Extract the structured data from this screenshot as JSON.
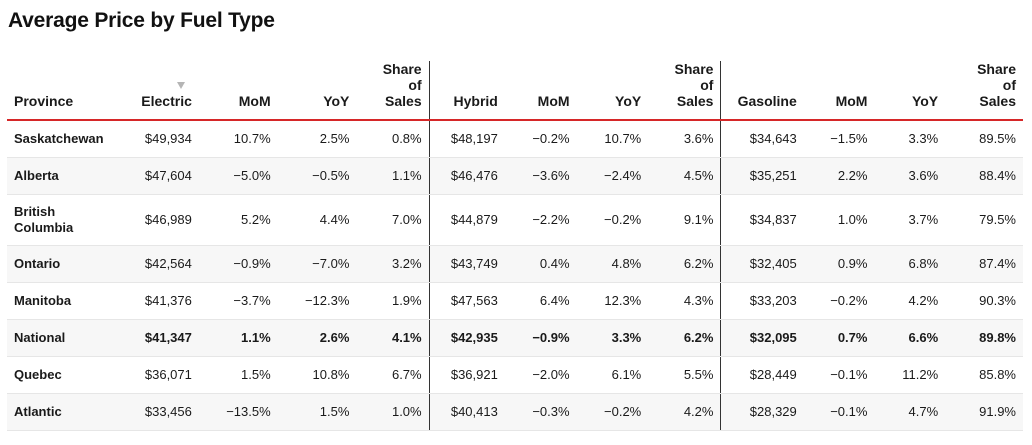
{
  "title": "Average Price by Fuel Type",
  "columns": [
    "Province",
    "Electric",
    "MoM",
    "YoY",
    "Share of Sales",
    "Hybrid",
    "MoM",
    "YoY",
    "Share of Sales",
    "Gasoline",
    "MoM",
    "YoY",
    "Share of Sales"
  ],
  "share_lines": [
    "Share",
    "of",
    "Sales"
  ],
  "sort_icon": "sort-down-icon",
  "accent_color": "#d62728",
  "rows": [
    {
      "province": "Saskatchewan",
      "cells": [
        "$49,934",
        "10.7%",
        "2.5%",
        "0.8%",
        "$48,197",
        "−0.2%",
        "10.7%",
        "3.6%",
        "$34,643",
        "−1.5%",
        "3.3%",
        "89.5%"
      ]
    },
    {
      "province": "Alberta",
      "cells": [
        "$47,604",
        "−5.0%",
        "−0.5%",
        "1.1%",
        "$46,476",
        "−3.6%",
        "−2.4%",
        "4.5%",
        "$35,251",
        "2.2%",
        "3.6%",
        "88.4%"
      ]
    },
    {
      "province_lines": [
        "British",
        "Columbia"
      ],
      "province": "British Columbia",
      "cells": [
        "$46,989",
        "5.2%",
        "4.4%",
        "7.0%",
        "$44,879",
        "−2.2%",
        "−0.2%",
        "9.1%",
        "$34,837",
        "1.0%",
        "3.7%",
        "79.5%"
      ]
    },
    {
      "province": "Ontario",
      "cells": [
        "$42,564",
        "−0.9%",
        "−7.0%",
        "3.2%",
        "$43,749",
        "0.4%",
        "4.8%",
        "6.2%",
        "$32,405",
        "0.9%",
        "6.8%",
        "87.4%"
      ]
    },
    {
      "province": "Manitoba",
      "cells": [
        "$41,376",
        "−3.7%",
        "−12.3%",
        "1.9%",
        "$47,563",
        "6.4%",
        "12.3%",
        "4.3%",
        "$33,203",
        "−0.2%",
        "4.2%",
        "90.3%"
      ]
    },
    {
      "province": "National",
      "cells": [
        "$41,347",
        "1.1%",
        "2.6%",
        "4.1%",
        "$42,935",
        "−0.9%",
        "3.3%",
        "6.2%",
        "$32,095",
        "0.7%",
        "6.6%",
        "89.8%"
      ]
    },
    {
      "province": "Quebec",
      "cells": [
        "$36,071",
        "1.5%",
        "10.8%",
        "6.7%",
        "$36,921",
        "−2.0%",
        "6.1%",
        "5.5%",
        "$28,449",
        "−0.1%",
        "11.2%",
        "85.8%"
      ]
    },
    {
      "province": "Atlantic",
      "cells": [
        "$33,456",
        "−13.5%",
        "1.5%",
        "1.0%",
        "$40,413",
        "−0.3%",
        "−0.2%",
        "4.2%",
        "$28,329",
        "−0.1%",
        "4.7%",
        "91.9%"
      ]
    }
  ]
}
